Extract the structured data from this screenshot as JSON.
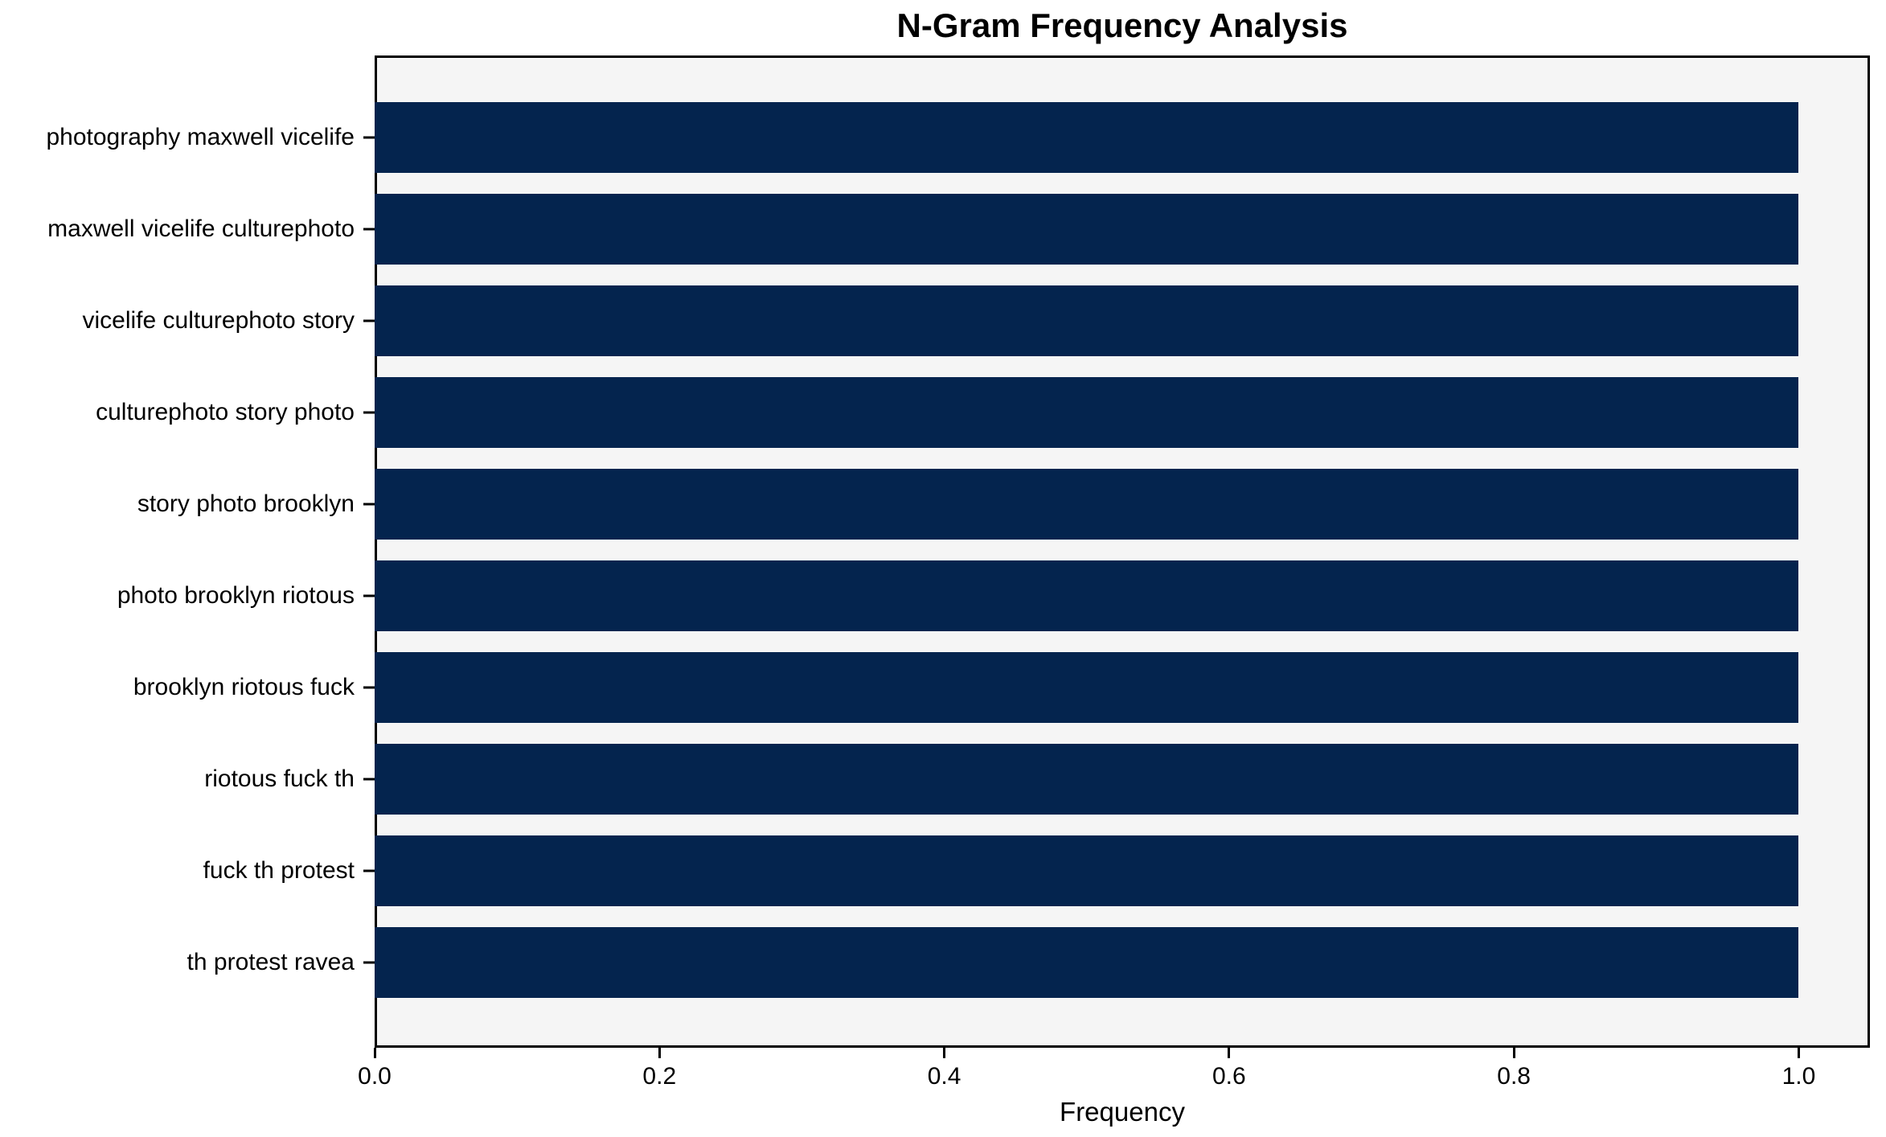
{
  "title": "N-Gram Frequency Analysis",
  "chart_data": {
    "type": "bar",
    "orientation": "horizontal",
    "title": "N-Gram Frequency Analysis",
    "xlabel": "Frequency",
    "ylabel": "",
    "categories": [
      "photography maxwell vicelife",
      "maxwell vicelife culturephoto",
      "vicelife culturephoto story",
      "culturephoto story photo",
      "story photo brooklyn",
      "photo brooklyn riotous",
      "brooklyn riotous fuck",
      "riotous fuck th",
      "fuck th protest",
      "th protest ravea"
    ],
    "values": [
      1.0,
      1.0,
      1.0,
      1.0,
      1.0,
      1.0,
      1.0,
      1.0,
      1.0,
      1.0
    ],
    "xlim": [
      0,
      1.05
    ],
    "xticks": [
      {
        "value": 0.0,
        "label": "0.0"
      },
      {
        "value": 0.2,
        "label": "0.2"
      },
      {
        "value": 0.4,
        "label": "0.4"
      },
      {
        "value": 0.6,
        "label": "0.6"
      },
      {
        "value": 0.8,
        "label": "0.8"
      },
      {
        "value": 1.0,
        "label": "1.0"
      }
    ],
    "grid": false,
    "legend": null,
    "colors": {
      "bar": "#04244e",
      "plot_background": "#f5f5f5",
      "figure_background": "#ffffff",
      "spine": "#000000",
      "text": "#000000"
    }
  }
}
